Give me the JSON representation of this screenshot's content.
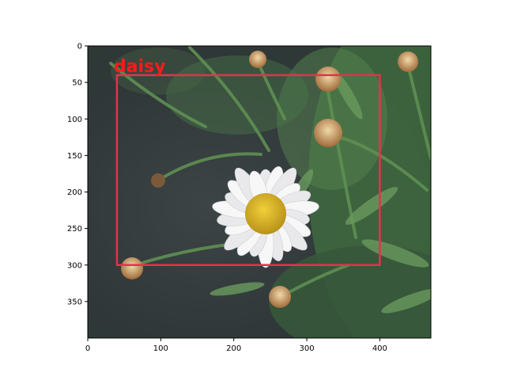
{
  "image": {
    "description_icon": "daisy-flower-photo",
    "colors": {
      "background_dark": "#2f3638",
      "foliage": "#4d7a4c",
      "petal": "#f3f3f3",
      "center": "#e0b526",
      "bbox": "#e8304d",
      "label": "#ff1a1a"
    }
  },
  "detection": {
    "label": "daisy",
    "box": {
      "x_min": 40,
      "y_min": 40,
      "x_max": 400,
      "y_max": 300
    }
  },
  "axes": {
    "xlim": [
      0,
      470
    ],
    "ylim": [
      400,
      0
    ],
    "x_ticks": [
      "0",
      "100",
      "200",
      "300",
      "400"
    ],
    "y_ticks": [
      "0",
      "50",
      "100",
      "150",
      "200",
      "250",
      "300",
      "350"
    ]
  }
}
